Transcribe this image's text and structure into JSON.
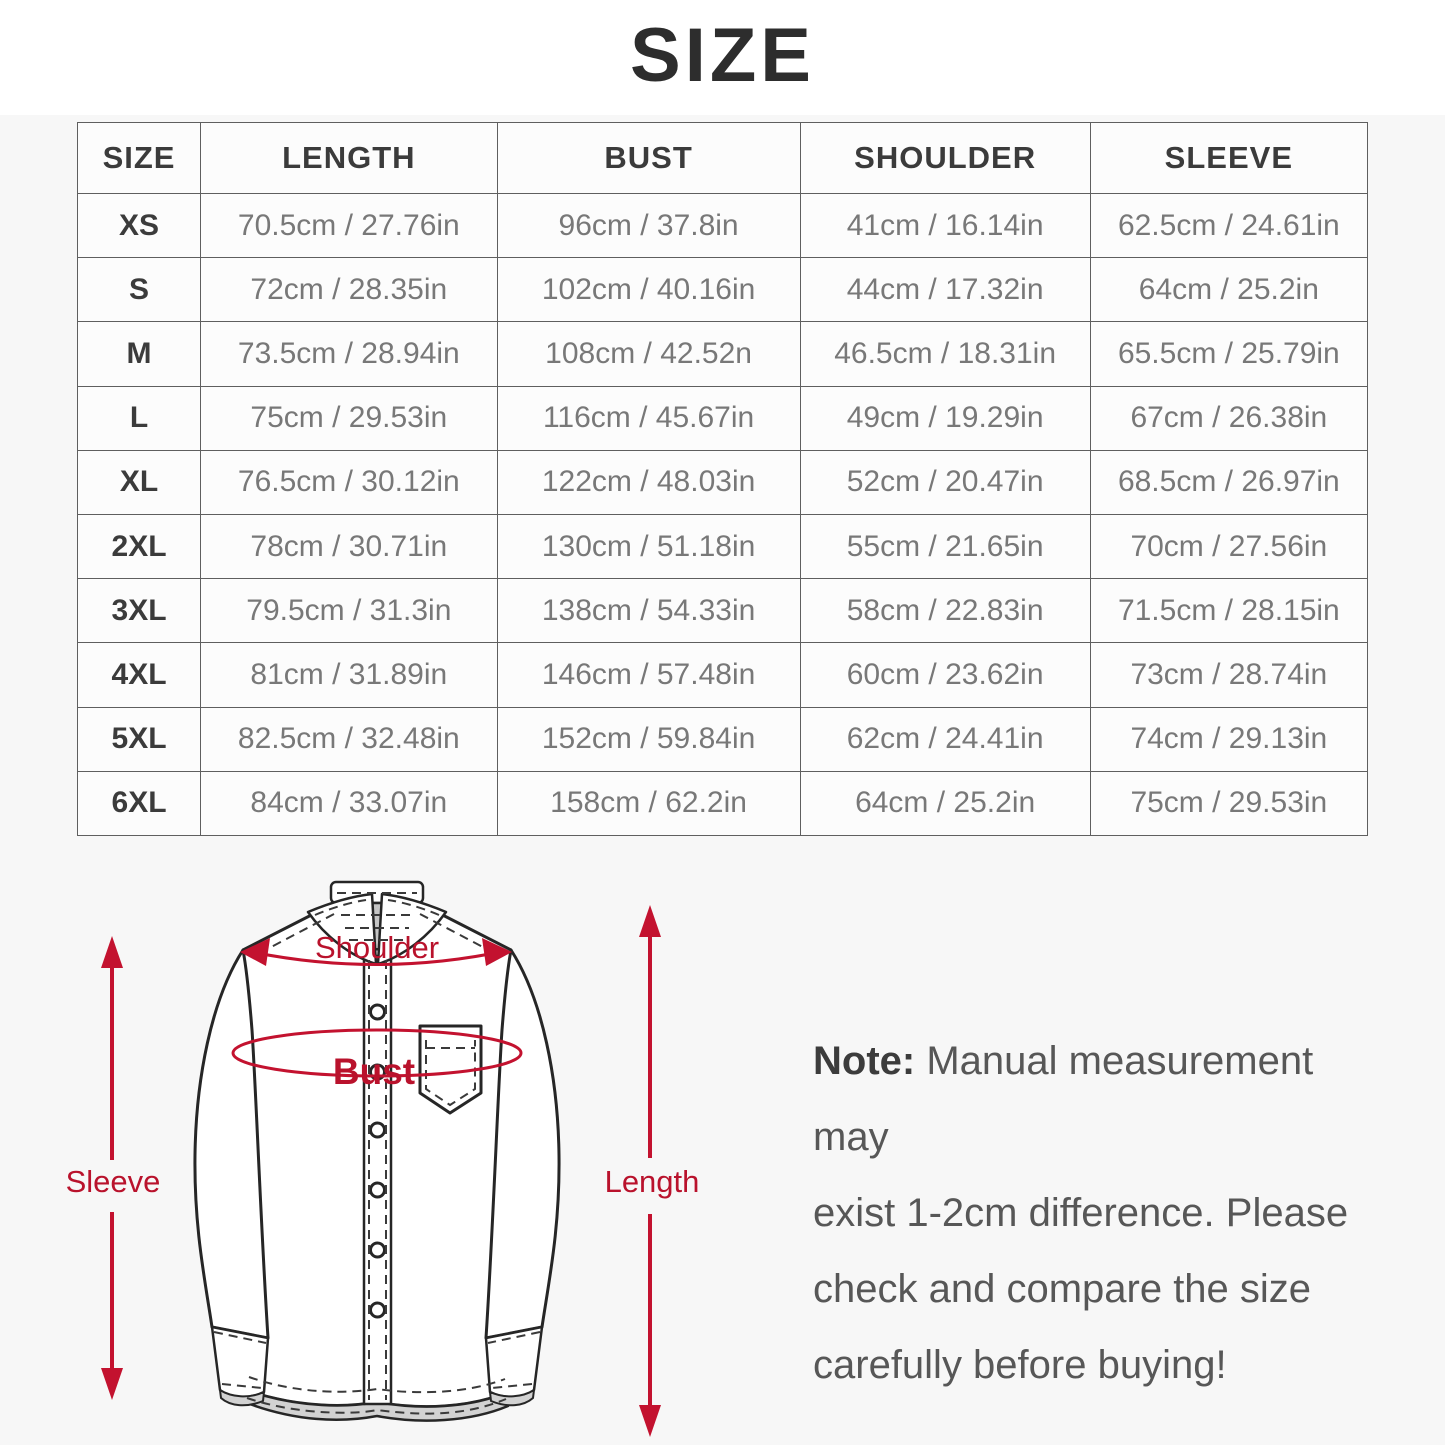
{
  "page_title": "SIZE",
  "colors": {
    "accent_red": "#c3122f",
    "table_border": "#5f5f5f",
    "header_text": "#3b3b3b",
    "cell_text": "#787878",
    "band_background": "#f7f7f7"
  },
  "size_table": {
    "columns": [
      "SIZE",
      "LENGTH",
      "BUST",
      "SHOULDER",
      "SLEEVE"
    ],
    "rows": [
      [
        "XS",
        "70.5cm / 27.76in",
        "96cm / 37.8in",
        "41cm / 16.14in",
        "62.5cm / 24.61in"
      ],
      [
        "S",
        "72cm / 28.35in",
        "102cm / 40.16in",
        "44cm / 17.32in",
        "64cm / 25.2in"
      ],
      [
        "M",
        "73.5cm / 28.94in",
        "108cm / 42.52n",
        "46.5cm / 18.31in",
        "65.5cm / 25.79in"
      ],
      [
        "L",
        "75cm / 29.53in",
        "116cm / 45.67in",
        "49cm / 19.29in",
        "67cm / 26.38in"
      ],
      [
        "XL",
        "76.5cm / 30.12in",
        "122cm / 48.03in",
        "52cm / 20.47in",
        "68.5cm / 26.97in"
      ],
      [
        "2XL",
        "78cm / 30.71in",
        "130cm / 51.18in",
        "55cm / 21.65in",
        "70cm / 27.56in"
      ],
      [
        "3XL",
        "79.5cm / 31.3in",
        "138cm / 54.33in",
        "58cm / 22.83in",
        "71.5cm / 28.15in"
      ],
      [
        "4XL",
        "81cm / 31.89in",
        "146cm / 57.48in",
        "60cm / 23.62in",
        "73cm / 28.74in"
      ],
      [
        "5XL",
        "82.5cm / 32.48in",
        "152cm / 59.84in",
        "62cm / 24.41in",
        "74cm / 29.13in"
      ],
      [
        "6XL",
        "84cm / 33.07in",
        "158cm / 62.2in",
        "64cm / 25.2in",
        "75cm / 29.53in"
      ]
    ]
  },
  "diagram": {
    "labels": {
      "sleeve": "Sleeve",
      "shoulder": "Shoulder",
      "bust": "Bust",
      "length": "Length"
    }
  },
  "note": {
    "bold_prefix": "Note:",
    "lines": [
      "Manual measurement may",
      "exist 1-2cm difference. Please",
      "check and compare the size",
      "carefully before buying!"
    ]
  }
}
